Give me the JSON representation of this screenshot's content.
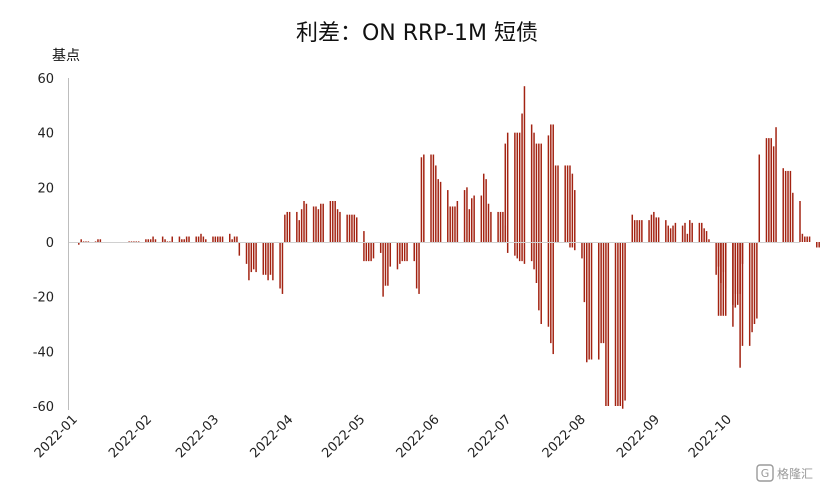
{
  "chart_data": {
    "type": "bar",
    "title": "利差：ON RRP-1M 短债",
    "xlabel": "",
    "ylabel": "基点",
    "ylim": [
      -60,
      60
    ],
    "yticks": [
      60,
      40,
      20,
      0,
      -20,
      -40,
      -60
    ],
    "x_range": [
      "2022-01-01",
      "2022-10-31"
    ],
    "xticks": [
      "2022-01",
      "2022-02",
      "2022-03",
      "2022-04",
      "2022-05",
      "2022-06",
      "2022-07",
      "2022-08",
      "2022-09",
      "2022-10"
    ],
    "bar_color": "#a32312",
    "grid": false,
    "legend": "none",
    "series": [
      {
        "segments": [
          {
            "start": "2022-01-03",
            "values": [
              -1,
              1,
              0,
              0,
              0,
              0,
              1,
              1
            ]
          },
          {
            "start": "2022-01-24",
            "values": [
              0,
              0,
              0,
              0,
              0,
              1,
              1,
              1,
              2,
              1,
              2,
              1,
              0,
              0,
              2,
              2,
              1,
              1,
              2,
              2,
              2,
              2,
              3,
              2,
              1,
              2,
              2,
              2,
              2,
              2,
              3,
              1,
              2,
              2
            ]
          },
          {
            "start": "2022-03-11",
            "values": [
              -5,
              -8,
              -14,
              -11,
              -10,
              -11,
              -12,
              -12,
              -14,
              -12,
              -14,
              -17,
              -19
            ]
          },
          {
            "start": "2022-03-30",
            "values": [
              10,
              11,
              11,
              11,
              8,
              12,
              15,
              14,
              13,
              13,
              12,
              14,
              14,
              15,
              15,
              15,
              12,
              11,
              10,
              10,
              10,
              10,
              9,
              4
            ]
          },
          {
            "start": "2022-05-02",
            "values": [
              -7,
              -7,
              -7,
              -7,
              -6,
              -4,
              -20,
              -16,
              -16,
              -9,
              -10,
              -8,
              -7,
              -7,
              -7,
              -7,
              -17,
              -19
            ]
          },
          {
            "start": "2022-05-26",
            "values": [
              31,
              32,
              32,
              32,
              28,
              23,
              22,
              19,
              13,
              13,
              13,
              15,
              19,
              20,
              12,
              16,
              17,
              17,
              25,
              23,
              14,
              11,
              11,
              11,
              11,
              6,
              -4,
              -5,
              -6,
              -7,
              -7,
              -8,
              -7,
              -10,
              -15,
              -25,
              -30,
              -31,
              -37,
              -41
            ]
          },
          {
            "start": "2022-06-30",
            "values": [
              36,
              40,
              40,
              40,
              40,
              47,
              57,
              43,
              40,
              36,
              36,
              36,
              39,
              43,
              43,
              28,
              28,
              28,
              28,
              28,
              25,
              19
            ]
          },
          {
            "start": "2022-07-27",
            "values": [
              -2,
              -2,
              -3,
              -6,
              -22,
              -44,
              -43,
              -43,
              -43,
              -37,
              -37,
              -60,
              -60,
              -60,
              -60,
              -60,
              -61,
              -58
            ]
          },
          {
            "start": "2022-08-22",
            "values": [
              10,
              8,
              8,
              8,
              8,
              8,
              10,
              11,
              9,
              9,
              8,
              6,
              5,
              6,
              7,
              6,
              7,
              3,
              8,
              7,
              7,
              7,
              5,
              4,
              1,
              -12,
              -9,
              -15,
              -11,
              -17,
              -23,
              -19,
              -19,
              -19,
              -8
            ]
          },
          {
            "start": "2022-09-27",
            "values": [
              -27,
              -27,
              -27,
              -27,
              -31,
              -24,
              -23,
              -46,
              -38,
              -38,
              -33,
              -30,
              -28,
              32,
              38,
              38,
              38,
              35,
              42,
              27,
              26,
              26,
              26,
              18,
              15,
              3,
              2,
              2,
              2,
              -2,
              -2
            ]
          }
        ]
      }
    ]
  },
  "watermark": "格隆汇"
}
